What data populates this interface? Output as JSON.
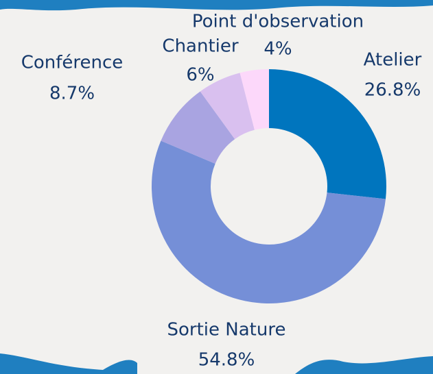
{
  "chart_data": {
    "type": "donut",
    "categories": [
      "Atelier",
      "Sortie Nature",
      "Conférence",
      "Chantier",
      "Point d'observation"
    ],
    "values": [
      26.8,
      54.8,
      8.7,
      6,
      4
    ],
    "value_labels": [
      "26.8%",
      "54.8%",
      "8.7%",
      "6%",
      "4%"
    ],
    "colors": [
      "#0075be",
      "#758fd7",
      "#a9a4e1",
      "#d9c0ef",
      "#fcd8fa"
    ]
  }
}
